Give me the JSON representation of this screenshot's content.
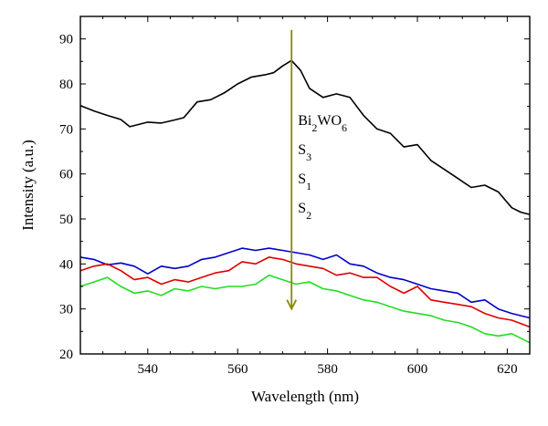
{
  "chart_data": {
    "type": "line",
    "xlabel": "Wavelength (nm)",
    "ylabel": "Intensity (a.u.)",
    "xlim": [
      525,
      625
    ],
    "ylim": [
      20,
      95
    ],
    "x_ticks": [
      540,
      560,
      580,
      600,
      620
    ],
    "y_ticks": [
      20,
      30,
      40,
      50,
      60,
      70,
      80,
      90
    ],
    "grid": false,
    "legend_position": "center (beside arrow)",
    "annotations": [
      {
        "type": "arrow",
        "direction": "down",
        "x": 572,
        "y_from": 92,
        "y_to": 30,
        "color": "#8a8a00"
      }
    ],
    "series": [
      {
        "name": "Bi2WO6",
        "color": "#000000",
        "x": [
          525,
          528,
          531,
          534,
          536,
          538,
          540,
          543,
          546,
          548,
          551,
          554,
          557,
          560,
          563,
          566,
          568,
          570,
          572,
          574,
          576,
          579,
          582,
          585,
          588,
          591,
          594,
          597,
          600,
          603,
          606,
          609,
          612,
          615,
          618,
          621,
          623,
          625
        ],
        "values": [
          75.2,
          74.0,
          73.0,
          72.1,
          70.5,
          71.0,
          71.5,
          71.3,
          72.0,
          72.5,
          76.0,
          76.5,
          78.0,
          80.0,
          81.5,
          82.0,
          82.5,
          84.0,
          85.2,
          83.0,
          79.0,
          77.0,
          77.8,
          77.0,
          73.0,
          70.0,
          69.0,
          66.0,
          66.5,
          63.0,
          61.0,
          59.0,
          57.0,
          57.5,
          56.0,
          52.5,
          51.5,
          51.0
        ]
      },
      {
        "name": "S3",
        "color": "#0000cc",
        "x": [
          525,
          528,
          531,
          534,
          537,
          540,
          543,
          546,
          549,
          552,
          555,
          558,
          561,
          564,
          567,
          570,
          573,
          576,
          579,
          582,
          585,
          588,
          591,
          594,
          597,
          600,
          603,
          606,
          609,
          612,
          615,
          618,
          621,
          625
        ],
        "values": [
          41.5,
          41.0,
          39.8,
          40.2,
          39.5,
          37.8,
          39.5,
          39.0,
          39.5,
          41.0,
          41.5,
          42.5,
          43.5,
          43.0,
          43.5,
          43.0,
          42.5,
          42.0,
          41.0,
          42.0,
          40.0,
          39.5,
          38.0,
          37.0,
          36.5,
          35.5,
          34.5,
          34.0,
          33.5,
          31.5,
          32.0,
          30.0,
          29.0,
          28.0
        ]
      },
      {
        "name": "S1",
        "color": "#e00000",
        "x": [
          525,
          528,
          531,
          534,
          537,
          540,
          543,
          546,
          549,
          552,
          555,
          558,
          561,
          564,
          567,
          570,
          573,
          576,
          579,
          582,
          585,
          588,
          591,
          594,
          597,
          600,
          603,
          606,
          609,
          612,
          615,
          618,
          621,
          625
        ],
        "values": [
          38.5,
          39.5,
          40.0,
          38.5,
          36.5,
          37.0,
          35.5,
          36.5,
          36.0,
          37.0,
          38.0,
          38.5,
          40.5,
          40.0,
          41.5,
          41.0,
          40.0,
          39.5,
          39.0,
          37.5,
          38.0,
          37.0,
          37.0,
          35.0,
          33.5,
          35.0,
          32.0,
          31.5,
          31.0,
          30.5,
          29.0,
          28.0,
          27.5,
          26.0
        ]
      },
      {
        "name": "S2",
        "color": "#22dd22",
        "x": [
          525,
          528,
          531,
          534,
          537,
          540,
          543,
          546,
          549,
          552,
          555,
          558,
          561,
          564,
          567,
          570,
          573,
          576,
          579,
          582,
          585,
          588,
          591,
          594,
          597,
          600,
          603,
          606,
          609,
          612,
          615,
          618,
          621,
          625
        ],
        "values": [
          35.0,
          36.0,
          37.0,
          35.0,
          33.5,
          34.0,
          33.0,
          34.5,
          34.0,
          35.0,
          34.5,
          35.0,
          35.0,
          35.5,
          37.5,
          36.5,
          35.5,
          36.0,
          34.5,
          34.0,
          33.0,
          32.0,
          31.5,
          30.5,
          29.5,
          29.0,
          28.5,
          27.5,
          27.0,
          26.0,
          24.5,
          24.0,
          24.5,
          22.5
        ]
      }
    ]
  }
}
